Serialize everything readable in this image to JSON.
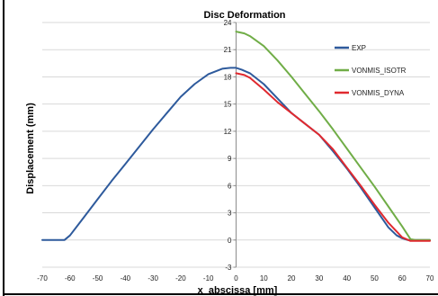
{
  "chart_data": {
    "type": "line",
    "title": "Disc Deformation",
    "xlabel": "x_abscissa [mm]",
    "ylabel": "Displacement (mm)",
    "xlim": [
      -70,
      70
    ],
    "ylim": [
      -3,
      24
    ],
    "x_ticks": [
      -70,
      -60,
      -50,
      -40,
      -30,
      -20,
      -10,
      0,
      10,
      20,
      30,
      40,
      50,
      60,
      70
    ],
    "y_ticks": [
      -3,
      0,
      3,
      6,
      9,
      12,
      15,
      18,
      21,
      24
    ],
    "grid": "horizontal",
    "legend_position": "top-right",
    "series": [
      {
        "name": "EXP",
        "color": "#2e5a9c",
        "x": [
          -70,
          -62,
          -60,
          -55,
          -50,
          -45,
          -40,
          -35,
          -30,
          -25,
          -20,
          -15,
          -10,
          -5,
          -2,
          0,
          2,
          5,
          10,
          15,
          20,
          25,
          30,
          35,
          40,
          45,
          50,
          55,
          58,
          60,
          62,
          65,
          70
        ],
        "y": [
          0,
          0,
          0.5,
          2.5,
          4.5,
          6.5,
          8.4,
          10.3,
          12.2,
          14.0,
          15.8,
          17.2,
          18.3,
          18.9,
          19.0,
          19.0,
          18.8,
          18.4,
          17.2,
          15.6,
          14.0,
          12.8,
          11.6,
          9.8,
          7.9,
          5.8,
          3.6,
          1.4,
          0.5,
          0.2,
          0.0,
          0.0,
          0.0
        ]
      },
      {
        "name": "VONMIS_ISOTR",
        "color": "#70ad47",
        "x": [
          0,
          3,
          5,
          10,
          15,
          20,
          25,
          30,
          35,
          40,
          45,
          50,
          55,
          60,
          63,
          65,
          70
        ],
        "y": [
          23.0,
          22.8,
          22.5,
          21.4,
          19.8,
          18.0,
          16.1,
          14.2,
          12.2,
          10.1,
          8.0,
          5.9,
          3.7,
          1.5,
          0.1,
          0.0,
          0.0
        ]
      },
      {
        "name": "VONMIS_DYNA",
        "color": "#e0292f",
        "x": [
          0,
          3,
          5,
          10,
          15,
          20,
          25,
          30,
          35,
          40,
          45,
          50,
          55,
          60,
          63,
          65,
          70
        ],
        "y": [
          18.4,
          18.2,
          17.9,
          16.6,
          15.2,
          14.0,
          12.8,
          11.6,
          10.0,
          8.0,
          6.0,
          3.9,
          1.9,
          0.3,
          -0.1,
          -0.1,
          -0.1
        ]
      }
    ]
  }
}
